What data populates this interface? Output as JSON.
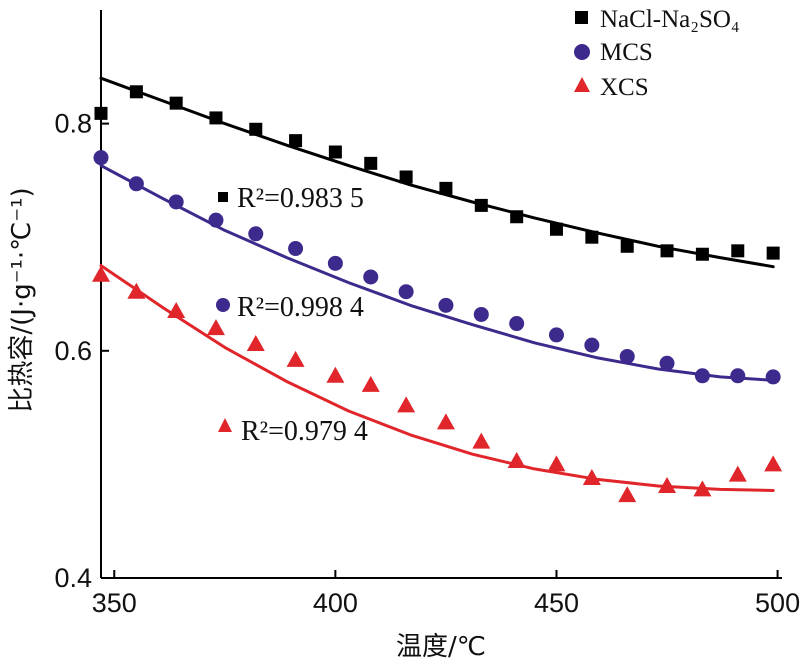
{
  "chart_data": {
    "type": "scatter",
    "xlabel": "温度/℃",
    "ylabel": "比热容/(J·g⁻¹·℃⁻¹)",
    "xlim": [
      347,
      501
    ],
    "ylim": [
      0.4,
      0.9
    ],
    "xticks": [
      350,
      400,
      450,
      500
    ],
    "yticks": [
      0.4,
      0.6,
      0.8
    ],
    "xtick_labels": [
      "350",
      "400",
      "450",
      "500"
    ],
    "ytick_labels": [
      "0.4",
      "0.6",
      "0.8"
    ],
    "legend_position": "top-right",
    "series": [
      {
        "name": "NaCl-Na₂SO₄",
        "color": "#000000",
        "marker": "square",
        "x": [
          347,
          355,
          364,
          373,
          382,
          391,
          400,
          408,
          416,
          425,
          433,
          441,
          450,
          458,
          466,
          475,
          483,
          491,
          499
        ],
        "y": [
          0.809,
          0.828,
          0.818,
          0.805,
          0.795,
          0.785,
          0.775,
          0.765,
          0.753,
          0.743,
          0.728,
          0.718,
          0.707,
          0.7,
          0.692,
          0.688,
          0.685,
          0.688,
          0.686
        ],
        "fit_y": [
          0.84,
          0.82,
          0.8,
          0.781,
          0.763,
          0.746,
          0.731,
          0.717,
          0.704,
          0.692,
          0.682,
          0.674
        ],
        "r2_label": "R²=0.983 5"
      },
      {
        "name": "MCS",
        "color": "#3d2a8c",
        "marker": "circle",
        "x": [
          347,
          355,
          364,
          373,
          382,
          391,
          400,
          408,
          416,
          425,
          433,
          441,
          450,
          458,
          466,
          475,
          483,
          491,
          499
        ],
        "y": [
          0.77,
          0.747,
          0.731,
          0.715,
          0.703,
          0.69,
          0.677,
          0.665,
          0.652,
          0.64,
          0.632,
          0.624,
          0.614,
          0.605,
          0.595,
          0.589,
          0.578,
          0.578,
          0.577
        ],
        "fit_y": [
          0.763,
          0.734,
          0.706,
          0.682,
          0.66,
          0.64,
          0.623,
          0.607,
          0.594,
          0.584,
          0.577,
          0.574
        ],
        "r2_label": "R²=0.998 4"
      },
      {
        "name": "XCS",
        "color": "#e0262b",
        "marker": "triangle",
        "x": [
          347,
          355,
          364,
          373,
          382,
          391,
          400,
          408,
          416,
          425,
          433,
          441,
          450,
          458,
          466,
          475,
          483,
          491,
          499
        ],
        "y": [
          0.667,
          0.652,
          0.635,
          0.62,
          0.606,
          0.592,
          0.578,
          0.57,
          0.552,
          0.537,
          0.52,
          0.503,
          0.5,
          0.488,
          0.473,
          0.481,
          0.478,
          0.491,
          0.5
        ],
        "fit_y": [
          0.675,
          0.638,
          0.603,
          0.573,
          0.547,
          0.526,
          0.509,
          0.496,
          0.487,
          0.481,
          0.478,
          0.477
        ],
        "r2_label": "R²=0.979 4"
      }
    ],
    "fit_x": [
      347,
      361,
      375,
      389,
      403,
      417,
      431,
      445,
      459,
      473,
      487,
      499
    ]
  }
}
